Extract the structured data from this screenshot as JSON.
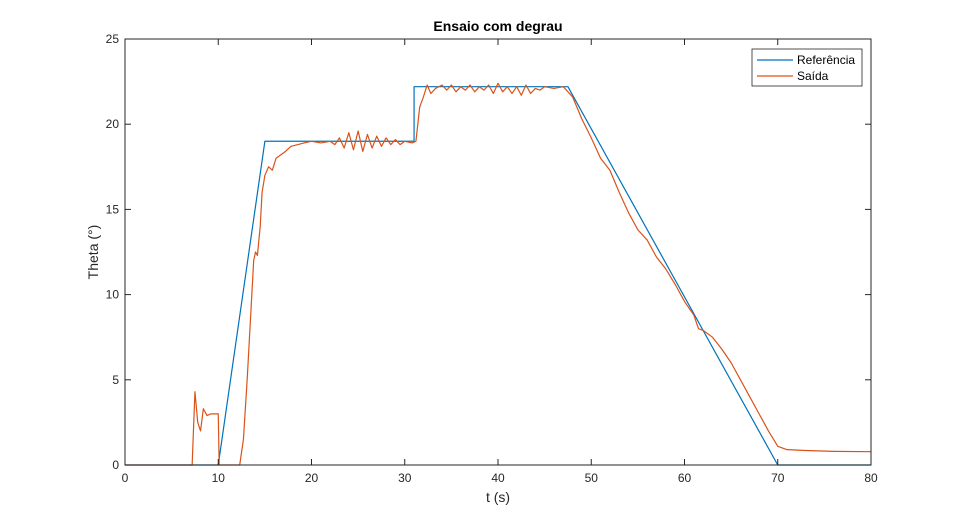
{
  "chart_data": {
    "type": "line",
    "title": "Ensaio com degrau",
    "xlabel": "t (s)",
    "ylabel": "Theta (°)",
    "xlim": [
      0,
      80
    ],
    "ylim": [
      0,
      25
    ],
    "xticks": [
      "0",
      "10",
      "20",
      "30",
      "40",
      "50",
      "60",
      "70",
      "80"
    ],
    "yticks": [
      "0",
      "5",
      "10",
      "15",
      "20",
      "25"
    ],
    "grid": false,
    "legend_position": "top-right",
    "series": [
      {
        "name": "Referência",
        "color": "#0072BD",
        "points": [
          [
            0,
            0
          ],
          [
            10,
            0
          ],
          [
            15,
            19
          ],
          [
            31,
            19
          ],
          [
            31,
            22.2
          ],
          [
            47.5,
            22.2
          ],
          [
            70,
            0
          ],
          [
            80,
            0
          ]
        ]
      },
      {
        "name": "Saída",
        "color": "#D95319",
        "points": [
          [
            0,
            0
          ],
          [
            7.2,
            0
          ],
          [
            7.5,
            4.3
          ],
          [
            7.8,
            2.5
          ],
          [
            8.1,
            2.0
          ],
          [
            8.4,
            3.3
          ],
          [
            8.8,
            2.9
          ],
          [
            9.2,
            3.0
          ],
          [
            10,
            3.0
          ],
          [
            10.1,
            0
          ],
          [
            12.3,
            0
          ],
          [
            12.7,
            1.5
          ],
          [
            13.1,
            5.0
          ],
          [
            13.5,
            9.0
          ],
          [
            13.8,
            12.0
          ],
          [
            14.0,
            12.5
          ],
          [
            14.2,
            12.3
          ],
          [
            14.5,
            14.0
          ],
          [
            14.7,
            16.0
          ],
          [
            15.0,
            17.0
          ],
          [
            15.4,
            17.5
          ],
          [
            15.8,
            17.3
          ],
          [
            16.2,
            18.0
          ],
          [
            16.7,
            18.2
          ],
          [
            17.2,
            18.4
          ],
          [
            17.8,
            18.7
          ],
          [
            18.5,
            18.8
          ],
          [
            19.2,
            18.9
          ],
          [
            20.0,
            19.0
          ],
          [
            21.0,
            18.9
          ],
          [
            22.0,
            19.0
          ],
          [
            22.5,
            18.8
          ],
          [
            23.0,
            19.2
          ],
          [
            23.5,
            18.6
          ],
          [
            24.0,
            19.5
          ],
          [
            24.5,
            18.5
          ],
          [
            25.0,
            19.6
          ],
          [
            25.5,
            18.4
          ],
          [
            26.0,
            19.4
          ],
          [
            26.5,
            18.6
          ],
          [
            27.0,
            19.3
          ],
          [
            27.5,
            18.7
          ],
          [
            28.0,
            19.2
          ],
          [
            28.5,
            18.8
          ],
          [
            29.0,
            19.1
          ],
          [
            29.5,
            18.8
          ],
          [
            30.0,
            19.0
          ],
          [
            30.8,
            18.9
          ],
          [
            31.2,
            19.0
          ],
          [
            31.6,
            21.0
          ],
          [
            32.0,
            21.6
          ],
          [
            32.4,
            22.3
          ],
          [
            32.8,
            21.8
          ],
          [
            33.3,
            22.1
          ],
          [
            34.0,
            22.3
          ],
          [
            34.5,
            22.0
          ],
          [
            35.0,
            22.3
          ],
          [
            35.5,
            21.9
          ],
          [
            36.0,
            22.2
          ],
          [
            36.5,
            22.0
          ],
          [
            37.0,
            22.3
          ],
          [
            37.5,
            21.9
          ],
          [
            38.0,
            22.2
          ],
          [
            38.5,
            22.0
          ],
          [
            39.0,
            22.3
          ],
          [
            39.5,
            21.8
          ],
          [
            40.0,
            22.4
          ],
          [
            40.5,
            21.9
          ],
          [
            41.0,
            22.2
          ],
          [
            41.5,
            21.8
          ],
          [
            42.0,
            22.2
          ],
          [
            42.5,
            21.7
          ],
          [
            43.0,
            22.3
          ],
          [
            43.5,
            21.8
          ],
          [
            44.0,
            22.1
          ],
          [
            44.5,
            22.0
          ],
          [
            45.0,
            22.2
          ],
          [
            46.0,
            22.1
          ],
          [
            47.0,
            22.2
          ],
          [
            48.0,
            21.6
          ],
          [
            49.0,
            20.3
          ],
          [
            50.0,
            19.2
          ],
          [
            51.0,
            18.0
          ],
          [
            52.0,
            17.3
          ],
          [
            53.0,
            16.0
          ],
          [
            54.0,
            14.8
          ],
          [
            55.0,
            13.8
          ],
          [
            56.0,
            13.2
          ],
          [
            57.0,
            12.2
          ],
          [
            58.0,
            11.5
          ],
          [
            59.0,
            10.6
          ],
          [
            60.0,
            9.6
          ],
          [
            61.0,
            8.8
          ],
          [
            61.5,
            8.0
          ],
          [
            62.0,
            7.9
          ],
          [
            63.0,
            7.5
          ],
          [
            64.0,
            6.8
          ],
          [
            65.0,
            6.0
          ],
          [
            66.0,
            5.0
          ],
          [
            67.0,
            4.0
          ],
          [
            68.0,
            3.0
          ],
          [
            69.0,
            2.0
          ],
          [
            70.0,
            1.1
          ],
          [
            71.0,
            0.9
          ],
          [
            73.0,
            0.85
          ],
          [
            76.0,
            0.8
          ],
          [
            80.0,
            0.78
          ]
        ]
      }
    ]
  }
}
